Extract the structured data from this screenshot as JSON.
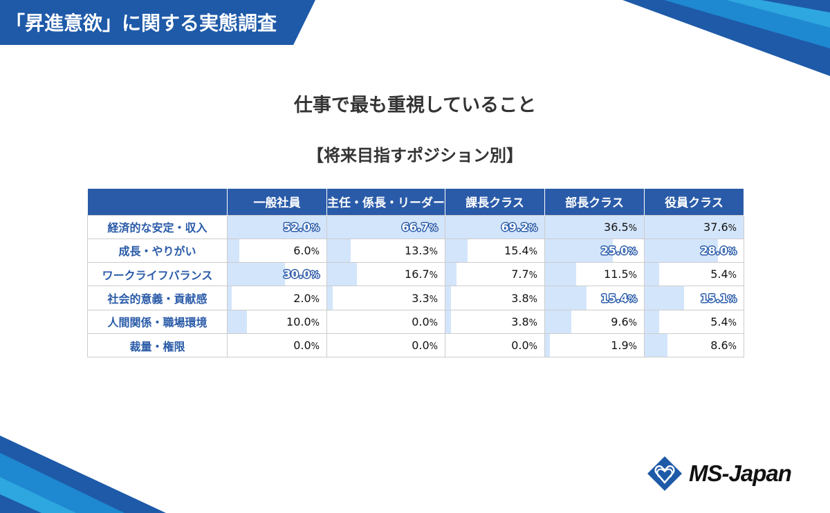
{
  "header": {
    "banner_title": "「昇進意欲」に関する実態調査"
  },
  "title": "仕事で最も重視していること",
  "subtitle": "【将来目指すポジション別】",
  "colors": {
    "accent": "#2a5ba8",
    "bar": "#d3e5fb",
    "banner": "#1e5aa8"
  },
  "chart_data": {
    "type": "table",
    "columns": [
      "一般社員",
      "主任・係長・リーダー",
      "課長クラス",
      "部長クラス",
      "役員クラス"
    ],
    "rows": [
      {
        "label": "経済的な安定・収入",
        "values": [
          52.0,
          66.7,
          69.2,
          36.5,
          37.6
        ],
        "highlight": [
          true,
          true,
          true,
          false,
          false
        ]
      },
      {
        "label": "成長・やりがい",
        "values": [
          6.0,
          13.3,
          15.4,
          25.0,
          28.0
        ],
        "highlight": [
          false,
          false,
          false,
          true,
          true
        ]
      },
      {
        "label": "ワークライフバランス",
        "values": [
          30.0,
          16.7,
          7.7,
          11.5,
          5.4
        ],
        "highlight": [
          true,
          false,
          false,
          false,
          false
        ]
      },
      {
        "label": "社会的意義・貢献感",
        "values": [
          2.0,
          3.3,
          3.8,
          15.4,
          15.1
        ],
        "highlight": [
          false,
          false,
          false,
          true,
          true
        ]
      },
      {
        "label": "人間関係・職場環境",
        "values": [
          10.0,
          0.0,
          3.8,
          9.6,
          5.4
        ],
        "highlight": [
          false,
          false,
          false,
          false,
          false
        ]
      },
      {
        "label": "裁量・権限",
        "values": [
          0.0,
          0.0,
          0.0,
          1.9,
          8.6
        ],
        "highlight": [
          false,
          false,
          false,
          false,
          false
        ]
      }
    ],
    "unit": "%"
  },
  "logo": {
    "text": "MS-Japan",
    "icon": "diamond-heart-logo-icon"
  }
}
